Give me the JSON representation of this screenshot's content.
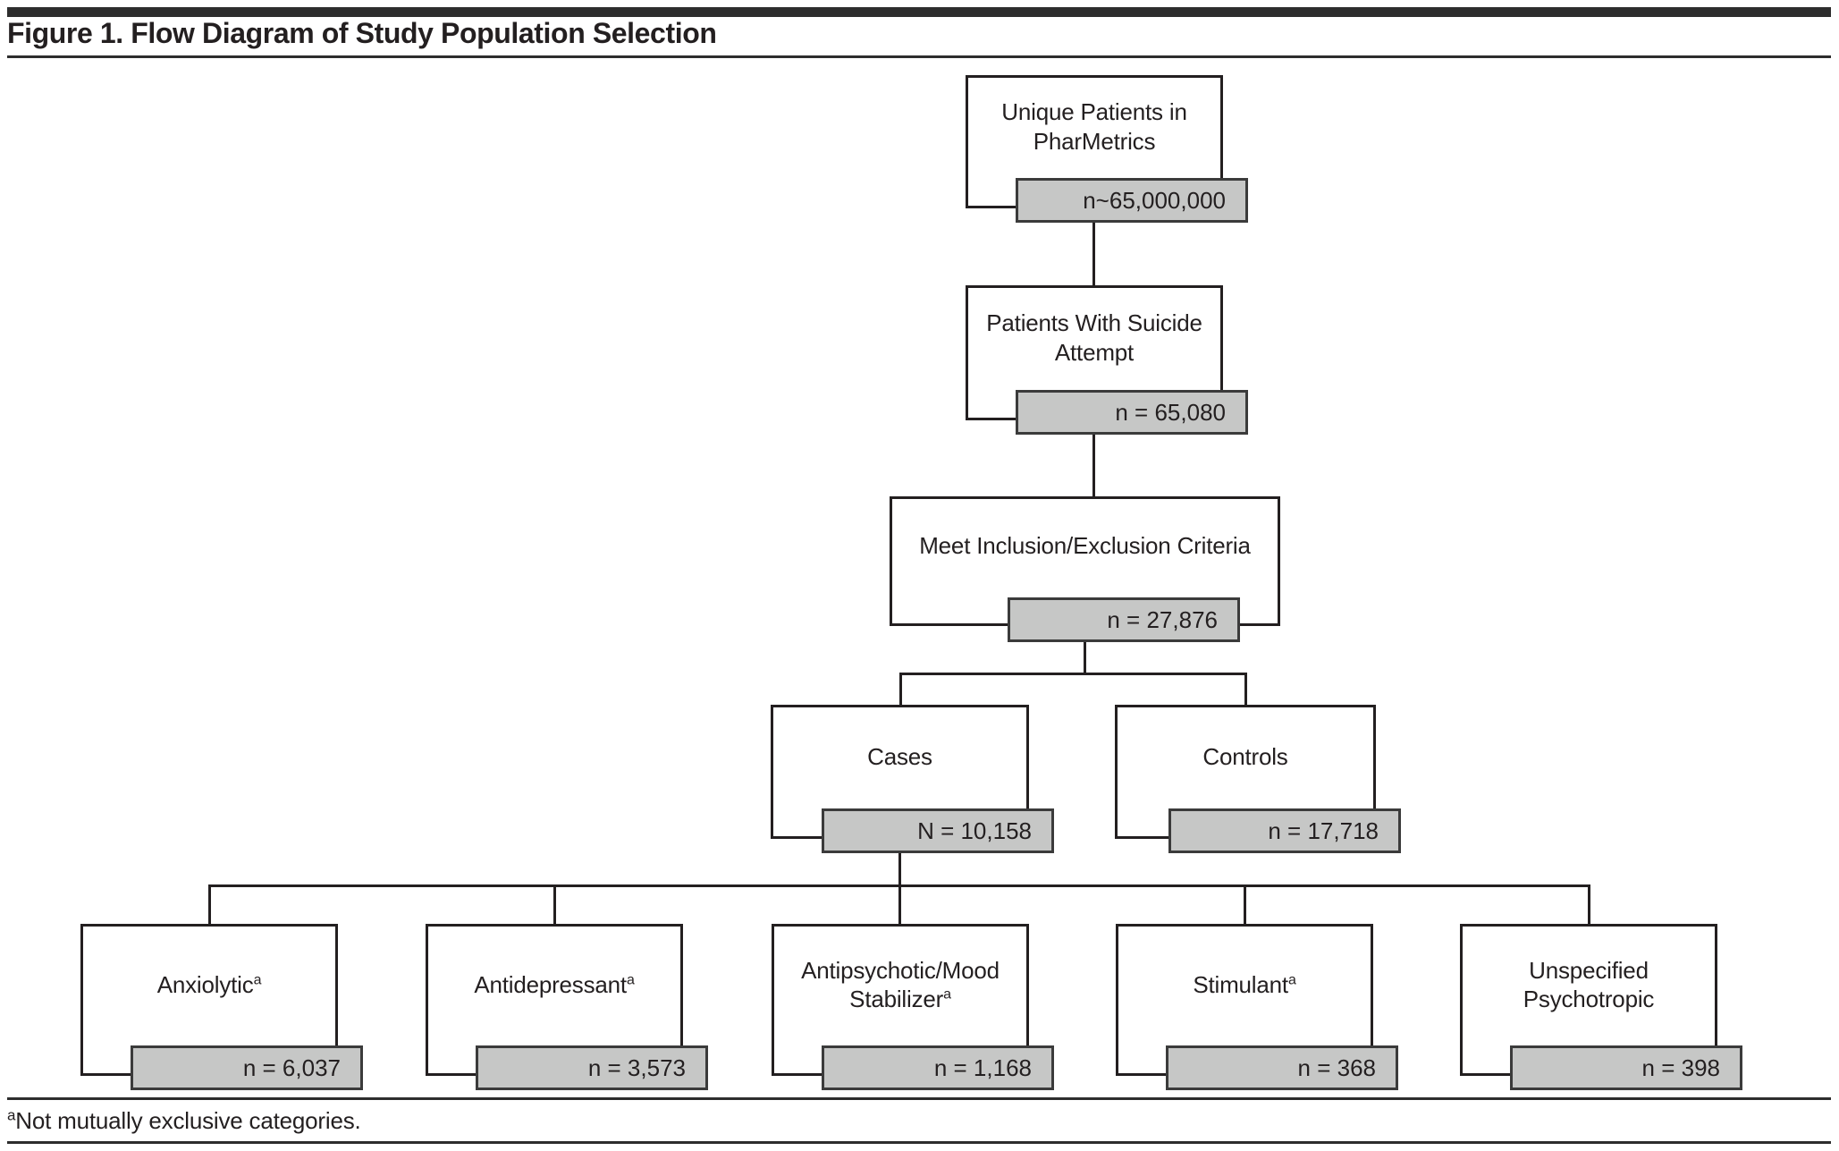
{
  "title": "Figure 1. Flow Diagram of Study Population Selection",
  "footnote": {
    "superscript": "a",
    "text": "Not mutually exclusive categories."
  },
  "colors": {
    "badge_fill": "#c6c7c6",
    "badge_border": "#3b3b3b",
    "box_border": "#231f20",
    "connector_line": "#231f20",
    "header_bar": "#2d2d2d"
  },
  "nodes": {
    "unique": {
      "label": "Unique Patients in PharMetrics",
      "count": "n~65,000,000"
    },
    "suicide": {
      "label": "Patients With Suicide Attempt",
      "count": "n = 65,080"
    },
    "criteria": {
      "label": "Meet Inclusion/Exclusion Criteria",
      "count": "n = 27,876"
    },
    "cases": {
      "label": "Cases",
      "count": "N = 10,158"
    },
    "controls": {
      "label": "Controls",
      "count": "n = 17,718"
    },
    "anxiolytic": {
      "label": "Anxiolytic",
      "superscript": "a",
      "count": "n = 6,037"
    },
    "antidepressant": {
      "label": "Antidepressant",
      "superscript": "a",
      "count": "n = 3,573"
    },
    "antipsychotic": {
      "label": "Antipsychotic/Mood Stabilizer",
      "superscript": "a",
      "count": "n = 1,168"
    },
    "stimulant": {
      "label": "Stimulant",
      "superscript": "a",
      "count": "n = 368"
    },
    "unspecified": {
      "label": "Unspecified Psychotropic",
      "count": "n = 398"
    }
  }
}
